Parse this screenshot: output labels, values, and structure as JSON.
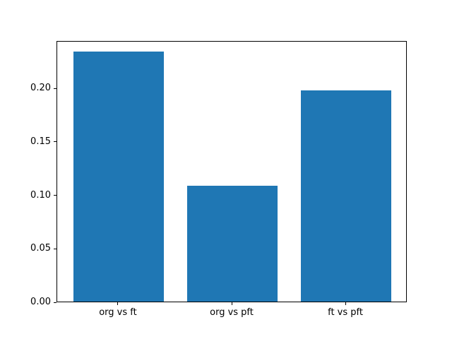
{
  "figure": {
    "background": "#ffffff",
    "bar_color": "#1f77b4",
    "spine_color": "#000000",
    "text_color": "#000000"
  },
  "chart_data": {
    "type": "bar",
    "title": "",
    "xlabel": "",
    "ylabel": "",
    "categories": [
      "org vs ft",
      "org vs pft",
      "ft vs pft"
    ],
    "values": [
      0.2335,
      0.1085,
      0.1975
    ],
    "ylim": [
      0,
      0.2443
    ],
    "yticks": [
      0.0,
      0.05,
      0.1,
      0.15,
      0.2
    ],
    "ytick_labels": [
      "0.00",
      "0.05",
      "0.10",
      "0.15",
      "0.20"
    ],
    "bar_width_fraction": 0.8,
    "grid": false,
    "legend": null
  }
}
